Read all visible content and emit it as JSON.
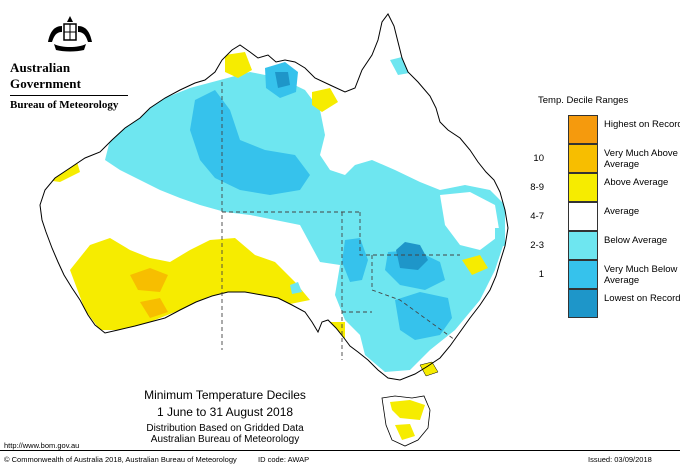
{
  "header": {
    "government": "Australian Government",
    "bureau": "Bureau of Meteorology",
    "crest_icon": "coat-of-arms-icon"
  },
  "legend": {
    "title": "Temp. Decile Ranges",
    "items": [
      {
        "label": "Highest on Record",
        "decile": "",
        "color": "#f59a0d"
      },
      {
        "label": "Very Much Above Average",
        "decile": "10",
        "color": "#f7be00"
      },
      {
        "label": "Above Average",
        "decile": "8-9",
        "color": "#f6ec00"
      },
      {
        "label": "Average",
        "decile": "4-7",
        "color": "#ffffff"
      },
      {
        "label": "Below Average",
        "decile": "2-3",
        "color": "#6ee6f0"
      },
      {
        "label": "Very Much Below Average",
        "decile": "1",
        "color": "#36c2ec"
      },
      {
        "label": "Lowest on Record",
        "decile": "",
        "color": "#1e96c9"
      }
    ]
  },
  "title": {
    "main": "Minimum Temperature Deciles",
    "period": "1 June to 31 August 2018",
    "line3": "Distribution Based on Gridded Data",
    "line4": "Australian Bureau of Meteorology"
  },
  "footer": {
    "url": "http://www.bom.gov.au",
    "copyright": "© Commonwealth of Australia 2018, Australian Bureau of Meteorology",
    "id_code": "ID code: AWAP",
    "issued": "Issued: 03/09/2018"
  }
}
